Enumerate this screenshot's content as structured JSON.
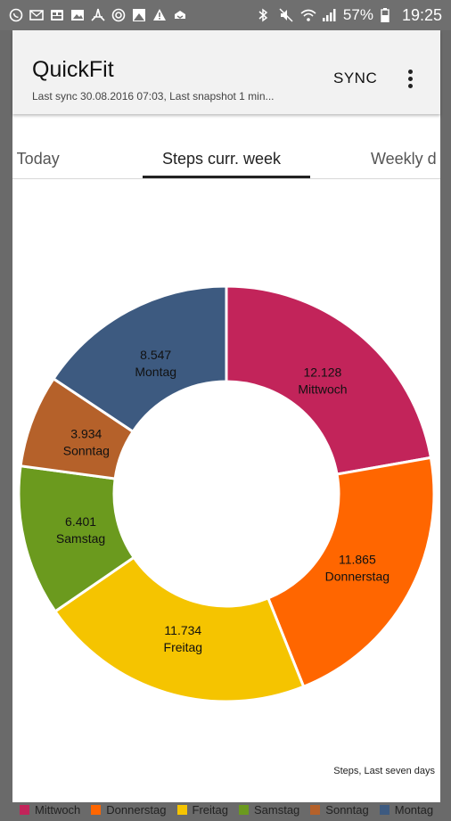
{
  "status_bar": {
    "left_icons": [
      "whatsapp-icon",
      "mail-icon",
      "gallery-icon",
      "image-icon",
      "pdf-icon",
      "target-icon",
      "photo-icon",
      "warning-icon",
      "cloud-icon"
    ],
    "right_icons": [
      "bluetooth-icon",
      "mute-icon",
      "wifi-icon",
      "signal-icon"
    ],
    "battery_percent": "57%",
    "time": "19:25"
  },
  "toolbar": {
    "title": "QuickFit",
    "subtitle": "Last sync 30.08.2016 07:03, Last snapshot 1 min...",
    "sync_label": "SYNC"
  },
  "tabs": [
    {
      "label": "Steps Today",
      "visible_label": "ts Today",
      "active": false
    },
    {
      "label": "Steps curr. week",
      "active": true
    },
    {
      "label": "Weekly d",
      "active": false
    }
  ],
  "chart_data": {
    "type": "pie",
    "variant": "donut",
    "description": "Steps, Last seven days",
    "slices": [
      {
        "label": "Mittwoch",
        "value": 12128,
        "display": "12.128",
        "color": "#c2245a"
      },
      {
        "label": "Donnerstag",
        "value": 11865,
        "display": "11.865",
        "color": "#ff6600"
      },
      {
        "label": "Freitag",
        "value": 11734,
        "display": "11.734",
        "color": "#f5c400"
      },
      {
        "label": "Samstag",
        "value": 6401,
        "display": "6.401",
        "color": "#6b9a1e"
      },
      {
        "label": "Sonntag",
        "value": 3934,
        "display": "3.934",
        "color": "#b5612a"
      },
      {
        "label": "Montag",
        "value": 8547,
        "display": "8.547",
        "color": "#3d5a80"
      }
    ],
    "legend": [
      "Mittwoch",
      "Donnerstag",
      "Freitag",
      "Samstag",
      "Sonntag",
      "Montag"
    ],
    "legend_placement": "bottom"
  }
}
